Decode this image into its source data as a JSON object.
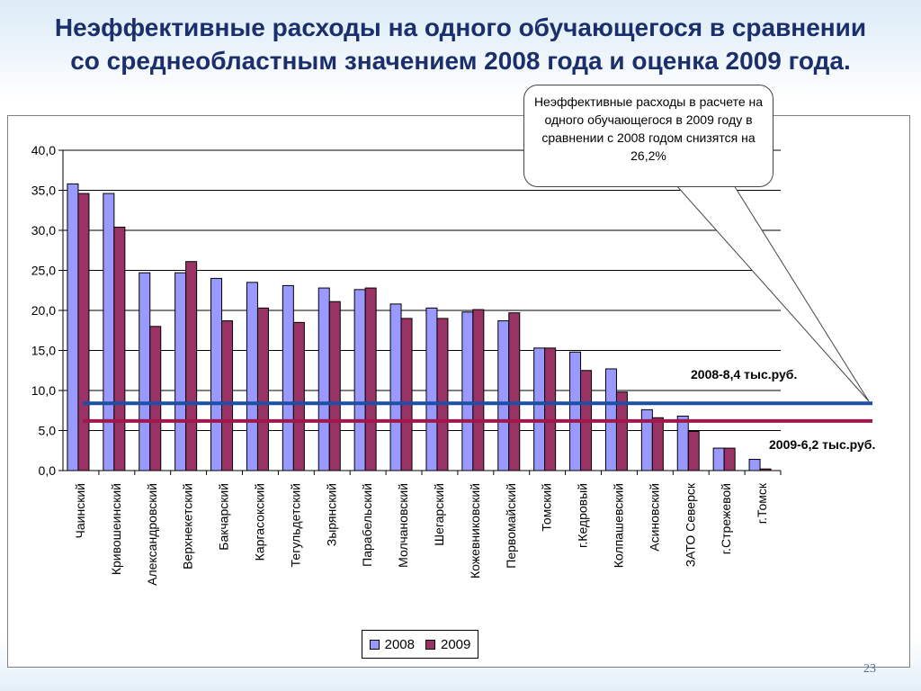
{
  "title": {
    "line1": "Неэффективные расходы на одного обучающегося в сравнении",
    "line2": "со среднеобластным значением 2008 года и оценка 2009 года."
  },
  "callout": {
    "text": "Неэффективные расходы в расчете на одного обучающегося в 2009 году в сравнении с 2008 годом снизятся на 26,2%"
  },
  "reference_lines": [
    {
      "label": "2008-8,4 тыс.руб.",
      "value": 8.4,
      "color": "#1f4fa3"
    },
    {
      "label": "2009-6,2 тыс.руб.",
      "value": 6.2,
      "color": "#a0174e"
    }
  ],
  "legend": {
    "items": [
      {
        "label": "2008",
        "color": "#9999ff"
      },
      {
        "label": "2009",
        "color": "#993366"
      }
    ]
  },
  "page_number": "23",
  "chart_data": {
    "type": "bar",
    "categories": [
      "Чаинский",
      "Кривошеинский",
      "Александровский",
      "Верхнекетский",
      "Бакчарский",
      "Каргасокский",
      "Тегульдетский",
      "Зырянский",
      "Парабельский",
      "Молчановский",
      "Шегарский",
      "Кожевниковский",
      "Первомайский",
      "Томский",
      "г.Кедровый",
      "Колпашевский",
      "Асиновский",
      "ЗАТО Северск",
      "г.Стрежевой",
      "г.Томск"
    ],
    "series": [
      {
        "name": "2008",
        "color": "#9999ff",
        "values": [
          35.8,
          34.6,
          24.7,
          24.7,
          24.0,
          23.5,
          23.1,
          22.8,
          22.6,
          20.8,
          20.3,
          19.8,
          18.7,
          15.3,
          14.8,
          12.7,
          7.6,
          6.8,
          2.8,
          1.4
        ]
      },
      {
        "name": "2009",
        "color": "#993366",
        "values": [
          34.6,
          30.4,
          18.0,
          26.1,
          18.7,
          20.3,
          18.5,
          21.1,
          22.8,
          19.0,
          19.0,
          20.1,
          19.7,
          15.3,
          12.5,
          9.8,
          6.6,
          4.9,
          2.8,
          0.2
        ]
      }
    ],
    "ylim": [
      0,
      40
    ],
    "yticks": [
      "0,0",
      "5,0",
      "10,0",
      "15,0",
      "20,0",
      "25,0",
      "30,0",
      "35,0",
      "40,0"
    ],
    "grid": true,
    "legend_position": "bottom"
  }
}
